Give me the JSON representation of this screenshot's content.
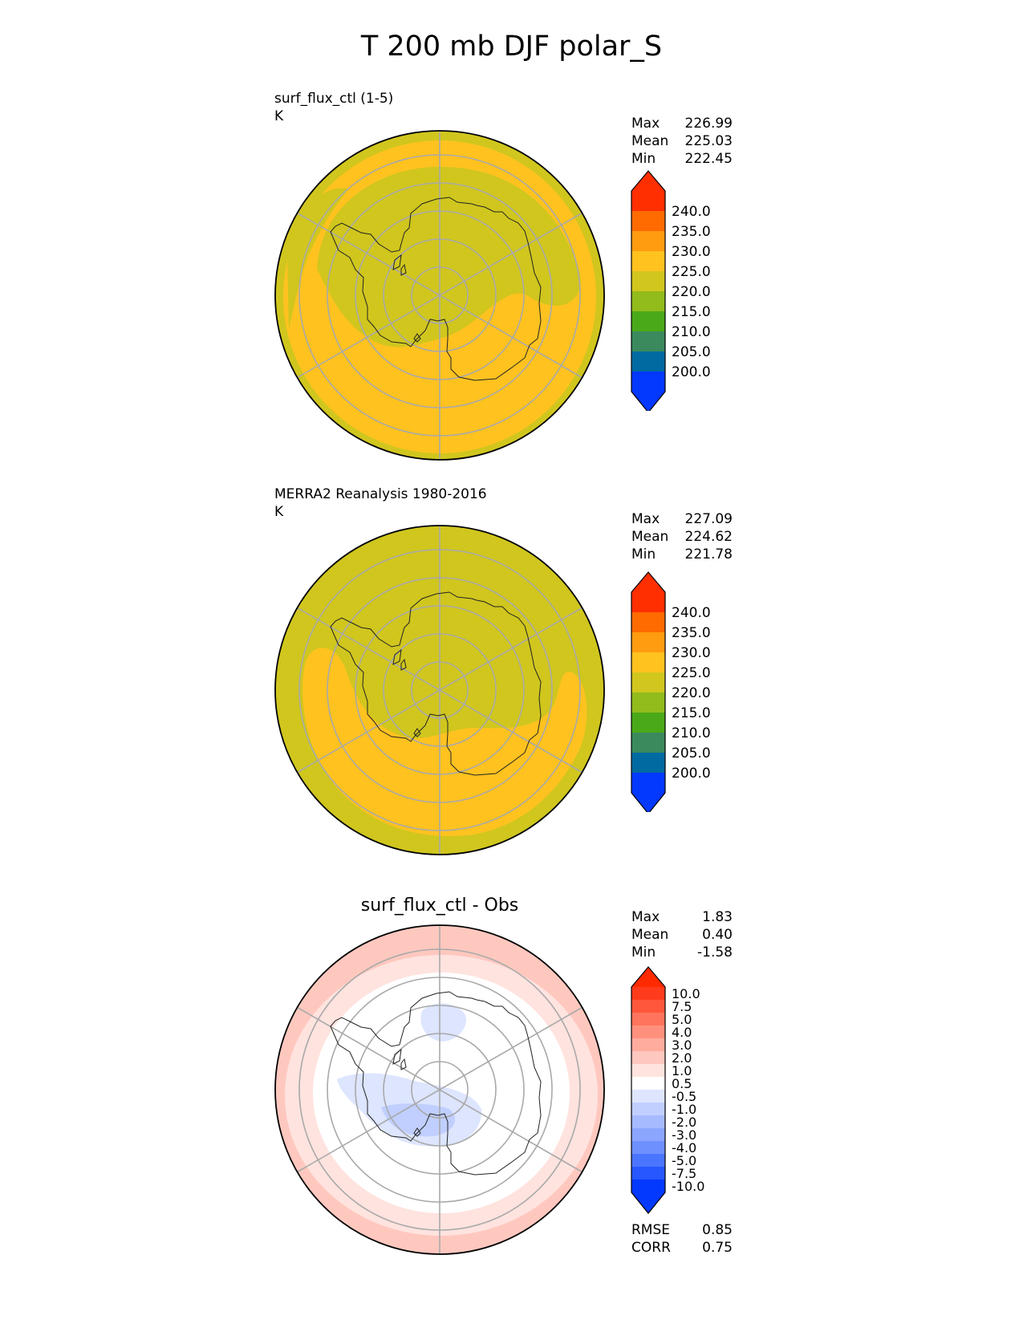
{
  "title": "T 200 mb DJF polar_S",
  "panels": [
    {
      "title_lines": [
        "surf_flux_ctl (1-5)",
        "K"
      ],
      "stats": [
        {
          "label": "Max",
          "value": "226.99"
        },
        {
          "label": "Mean",
          "value": "225.03"
        },
        {
          "label": "Min",
          "value": "222.45"
        }
      ],
      "colorbar": {
        "colors": [
          "#0338ff",
          "#006aa1",
          "#3a8a5e",
          "#4aa918",
          "#92bb1c",
          "#d0c61e",
          "#ffc21f",
          "#ff9c10",
          "#ff6b00",
          "#ff2f00"
        ],
        "labels": [
          "240.0",
          "235.0",
          "230.0",
          "225.0",
          "220.0",
          "215.0",
          "210.0",
          "205.0",
          "200.0"
        ]
      }
    },
    {
      "title_lines": [
        "MERRA2 Reanalysis 1980-2016",
        "K"
      ],
      "stats": [
        {
          "label": "Max",
          "value": "227.09"
        },
        {
          "label": "Mean",
          "value": "224.62"
        },
        {
          "label": "Min",
          "value": "221.78"
        }
      ],
      "colorbar": {
        "colors": [
          "#0338ff",
          "#006aa1",
          "#3a8a5e",
          "#4aa918",
          "#92bb1c",
          "#d0c61e",
          "#ffc21f",
          "#ff9c10",
          "#ff6b00",
          "#ff2f00"
        ],
        "labels": [
          "240.0",
          "235.0",
          "230.0",
          "225.0",
          "220.0",
          "215.0",
          "210.0",
          "205.0",
          "200.0"
        ]
      }
    },
    {
      "title_lines": [
        "surf_flux_ctl - Obs"
      ],
      "stats": [
        {
          "label": "Max",
          "value": "1.83"
        },
        {
          "label": "Mean",
          "value": "0.40"
        },
        {
          "label": "Min",
          "value": "-1.58"
        }
      ],
      "colorbar": {
        "colors": [
          "#0338ff",
          "#2657ff",
          "#4a75ff",
          "#6e90ff",
          "#8aa6ff",
          "#a6bbff",
          "#c0cfff",
          "#dde5ff",
          "#ffffff",
          "#ffe3df",
          "#ffc8bf",
          "#ffac9e",
          "#ff907d",
          "#ff745c",
          "#ff573b",
          "#ff3b1c"
        ],
        "labels": [
          "10.0",
          "7.5",
          "5.0",
          "4.0",
          "3.0",
          "2.0",
          "1.0",
          "0.5",
          "-0.5",
          "-1.0",
          "-2.0",
          "-3.0",
          "-4.0",
          "-5.0",
          "-7.5",
          "-10.0"
        ],
        "top_color": "#ff2a00"
      },
      "metrics": [
        {
          "label": "RMSE",
          "value": "0.85"
        },
        {
          "label": "CORR",
          "value": "0.75"
        }
      ]
    }
  ]
}
